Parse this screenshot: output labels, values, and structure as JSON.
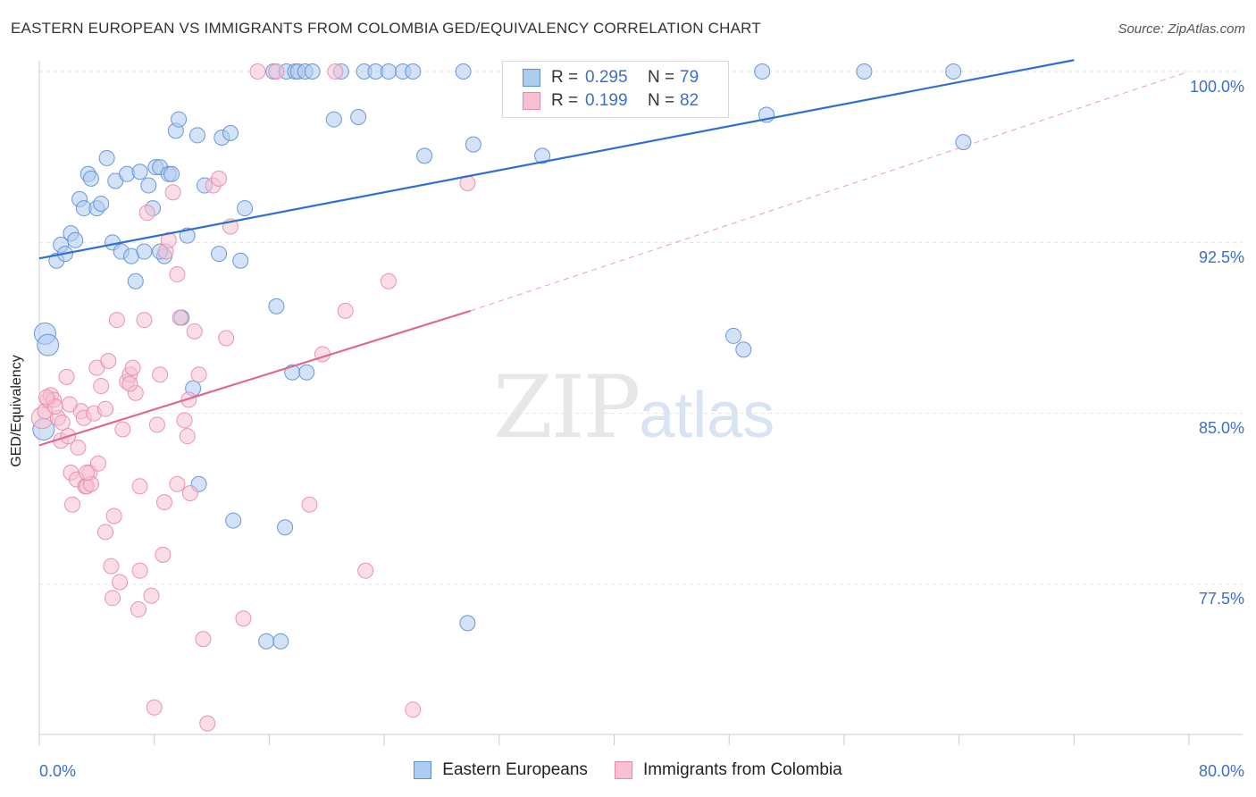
{
  "title": "EASTERN EUROPEAN VS IMMIGRANTS FROM COLOMBIA GED/EQUIVALENCY CORRELATION CHART",
  "source": "Source: ZipAtlas.com",
  "watermark": {
    "zip": "ZIP",
    "atlas": "atlas"
  },
  "legend": {
    "r_label": "R =",
    "n_label": "N =",
    "rows": [
      {
        "r": "0.295",
        "n": "79",
        "color": "#5b8fd6",
        "fill": "#aecbf0"
      },
      {
        "r": "0.199",
        "n": "82",
        "color": "#e88aaa",
        "fill": "#f7c1d2"
      }
    ]
  },
  "chart_data": {
    "type": "scatter",
    "title": "EASTERN EUROPEAN VS IMMIGRANTS FROM COLOMBIA GED/EQUIVALENCY CORRELATION CHART",
    "xlabel": "",
    "ylabel": "GED/Equivalency",
    "xlim": [
      0,
      80
    ],
    "ylim": [
      70.5,
      100.5
    ],
    "x_ticks": [
      "0.0%",
      "80.0%"
    ],
    "y_ticks": [
      {
        "value": 100.0,
        "label": "100.0%"
      },
      {
        "value": 92.5,
        "label": "92.5%"
      },
      {
        "value": 85.0,
        "label": "85.0%"
      },
      {
        "value": 77.5,
        "label": "77.5%"
      }
    ],
    "grid": true,
    "legend_position": "bottom-center",
    "series": [
      {
        "name": "Eastern Europeans",
        "color": "#5b8fd6",
        "fill": "#aecbf0",
        "trend": {
          "x": [
            0,
            72
          ],
          "y": [
            91.8,
            100.5
          ],
          "style": "solid"
        },
        "points": [
          [
            0.4,
            88.5
          ],
          [
            0.6,
            88.0
          ],
          [
            1.2,
            91.7
          ],
          [
            1.5,
            92.4
          ],
          [
            1.8,
            92.0
          ],
          [
            2.2,
            92.9
          ],
          [
            2.5,
            92.6
          ],
          [
            2.8,
            94.4
          ],
          [
            3.1,
            94.0
          ],
          [
            3.4,
            95.5
          ],
          [
            3.6,
            95.3
          ],
          [
            4.0,
            94.0
          ],
          [
            4.3,
            94.2
          ],
          [
            4.7,
            96.2
          ],
          [
            5.1,
            92.5
          ],
          [
            5.3,
            95.2
          ],
          [
            5.7,
            92.1
          ],
          [
            6.1,
            95.5
          ],
          [
            6.4,
            91.9
          ],
          [
            6.7,
            90.8
          ],
          [
            7.0,
            95.6
          ],
          [
            7.3,
            92.1
          ],
          [
            7.6,
            95.0
          ],
          [
            7.9,
            94.0
          ],
          [
            8.1,
            95.8
          ],
          [
            8.4,
            95.8
          ],
          [
            8.7,
            91.9
          ],
          [
            9.0,
            95.5
          ],
          [
            9.2,
            95.5
          ],
          [
            9.5,
            97.4
          ],
          [
            9.7,
            97.9
          ],
          [
            9.9,
            89.2
          ],
          [
            10.3,
            92.8
          ],
          [
            10.7,
            86.1
          ],
          [
            11.0,
            97.2
          ],
          [
            11.5,
            95.0
          ],
          [
            12.7,
            97.1
          ],
          [
            13.3,
            97.3
          ],
          [
            14.3,
            94.0
          ],
          [
            16.3,
            100.0
          ],
          [
            17.2,
            100.0
          ],
          [
            17.8,
            100.0
          ],
          [
            18.0,
            100.0
          ],
          [
            18.5,
            100.0
          ],
          [
            19.0,
            100.0
          ],
          [
            20.5,
            97.9
          ],
          [
            21.0,
            100.0
          ],
          [
            22.2,
            98.0
          ],
          [
            22.6,
            100.0
          ],
          [
            23.4,
            100.0
          ],
          [
            24.3,
            100.0
          ],
          [
            25.3,
            100.0
          ],
          [
            26.0,
            100.0
          ],
          [
            26.8,
            96.3
          ],
          [
            29.5,
            100.0
          ],
          [
            30.2,
            96.8
          ],
          [
            35.0,
            96.3
          ],
          [
            35.5,
            100.0
          ],
          [
            42.0,
            100.0
          ],
          [
            45.5,
            100.0
          ],
          [
            48.3,
            88.4
          ],
          [
            49.0,
            87.8
          ],
          [
            50.3,
            100.0
          ],
          [
            50.6,
            98.1
          ],
          [
            57.4,
            100.0
          ],
          [
            63.6,
            100.0
          ],
          [
            64.3,
            96.9
          ],
          [
            8.4,
            92.1
          ],
          [
            12.5,
            92.0
          ],
          [
            14.0,
            91.7
          ],
          [
            16.5,
            89.7
          ],
          [
            17.6,
            86.8
          ],
          [
            18.6,
            86.8
          ],
          [
            13.5,
            80.3
          ],
          [
            15.8,
            75.0
          ],
          [
            16.8,
            75.0
          ],
          [
            17.1,
            80.0
          ],
          [
            29.8,
            75.8
          ],
          [
            11.1,
            81.9
          ],
          [
            0.3,
            84.3
          ]
        ]
      },
      {
        "name": "Immigrants from Colombia",
        "color": "#e88aaa",
        "fill": "#f7c1d2",
        "trend": {
          "x": [
            0,
            30
          ],
          "y": [
            83.6,
            89.5
          ],
          "style": "solid",
          "extended_to": [
            80,
            100.0
          ]
        },
        "points": [
          [
            0.2,
            84.8
          ],
          [
            0.4,
            85.1
          ],
          [
            0.6,
            85.6
          ],
          [
            0.8,
            85.8
          ],
          [
            1.0,
            85.6
          ],
          [
            1.3,
            84.8
          ],
          [
            1.5,
            83.8
          ],
          [
            1.6,
            84.6
          ],
          [
            1.9,
            86.6
          ],
          [
            2.0,
            84.0
          ],
          [
            2.2,
            82.4
          ],
          [
            2.3,
            81.0
          ],
          [
            2.6,
            82.1
          ],
          [
            2.7,
            83.5
          ],
          [
            2.9,
            85.1
          ],
          [
            3.1,
            84.8
          ],
          [
            3.2,
            81.8
          ],
          [
            3.3,
            81.8
          ],
          [
            3.5,
            82.4
          ],
          [
            3.6,
            81.9
          ],
          [
            3.8,
            85.0
          ],
          [
            4.0,
            87.0
          ],
          [
            4.1,
            82.8
          ],
          [
            4.3,
            86.2
          ],
          [
            4.6,
            85.2
          ],
          [
            4.8,
            87.3
          ],
          [
            5.0,
            78.3
          ],
          [
            5.1,
            76.9
          ],
          [
            5.2,
            80.5
          ],
          [
            5.4,
            89.1
          ],
          [
            5.6,
            77.6
          ],
          [
            5.8,
            84.3
          ],
          [
            6.1,
            86.4
          ],
          [
            6.3,
            86.7
          ],
          [
            6.5,
            87.0
          ],
          [
            6.7,
            85.9
          ],
          [
            6.9,
            76.4
          ],
          [
            7.0,
            78.1
          ],
          [
            7.3,
            89.1
          ],
          [
            7.5,
            93.8
          ],
          [
            7.8,
            77.0
          ],
          [
            8.0,
            72.1
          ],
          [
            8.2,
            84.5
          ],
          [
            8.4,
            86.7
          ],
          [
            8.6,
            78.8
          ],
          [
            8.8,
            92.1
          ],
          [
            9.0,
            92.6
          ],
          [
            9.3,
            94.7
          ],
          [
            9.6,
            91.1
          ],
          [
            9.8,
            89.2
          ],
          [
            10.1,
            84.7
          ],
          [
            10.3,
            84.0
          ],
          [
            10.5,
            81.5
          ],
          [
            10.8,
            88.6
          ],
          [
            11.1,
            86.7
          ],
          [
            11.4,
            75.1
          ],
          [
            11.7,
            71.4
          ],
          [
            12.1,
            95.0
          ],
          [
            12.5,
            95.3
          ],
          [
            13.0,
            88.3
          ],
          [
            13.3,
            93.2
          ],
          [
            14.2,
            76.0
          ],
          [
            15.2,
            100.0
          ],
          [
            16.5,
            100.0
          ],
          [
            18.8,
            81.0
          ],
          [
            19.7,
            87.6
          ],
          [
            20.6,
            100.0
          ],
          [
            21.3,
            89.5
          ],
          [
            22.7,
            78.1
          ],
          [
            24.3,
            90.8
          ],
          [
            26.0,
            72.0
          ],
          [
            29.8,
            95.1
          ],
          [
            8.7,
            81.1
          ],
          [
            7.0,
            81.8
          ],
          [
            6.3,
            86.3
          ],
          [
            9.6,
            81.9
          ],
          [
            10.4,
            85.6
          ],
          [
            4.6,
            79.8
          ],
          [
            3.3,
            82.4
          ],
          [
            2.1,
            85.4
          ],
          [
            1.1,
            85.3
          ],
          [
            0.5,
            85.7
          ]
        ]
      }
    ]
  }
}
